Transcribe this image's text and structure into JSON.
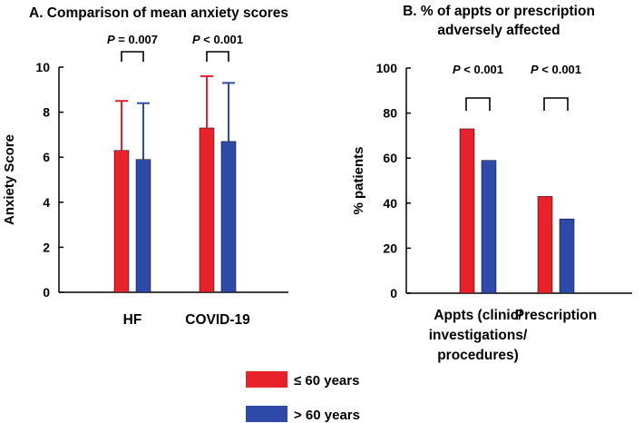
{
  "colors": {
    "series1": "#e8222b",
    "series2": "#2e4aa8",
    "axis": "#000000"
  },
  "legend": [
    {
      "label": "≤ 60 years",
      "color": "#e8222b"
    },
    {
      "label": "> 60 years",
      "color": "#2e4aa8"
    }
  ],
  "chart_data": [
    {
      "type": "bar",
      "title": "A. Comparison of mean anxiety scores",
      "xlabel": "",
      "ylabel": "Anxiety Score",
      "ylim": [
        0,
        10
      ],
      "yticks": [
        "0",
        "2",
        "4",
        "6",
        "8",
        "10"
      ],
      "categories": [
        "HF",
        "COVID-19"
      ],
      "series": [
        {
          "name": "≤ 60 years",
          "values": [
            6.3,
            7.3
          ],
          "error_upper": [
            8.5,
            9.6
          ]
        },
        {
          "name": "> 60 years",
          "values": [
            5.9,
            6.7
          ],
          "error_upper": [
            8.4,
            9.3
          ]
        }
      ],
      "annotations": [
        {
          "p": "P",
          "rest": " = 0.007"
        },
        {
          "p": "P",
          "rest": " < 0.001"
        }
      ]
    },
    {
      "type": "bar",
      "title": [
        "B. % of appts or prescription",
        "adversely affected"
      ],
      "xlabel": "",
      "ylabel": "% patients",
      "ylim": [
        0,
        100
      ],
      "yticks": [
        "0",
        "20",
        "40",
        "60",
        "80",
        "100"
      ],
      "categories": [
        [
          "Appts (clinic/",
          "investigations/",
          "procedures)"
        ],
        [
          "Prescription"
        ]
      ],
      "series": [
        {
          "name": "≤ 60 years",
          "values": [
            73,
            43
          ]
        },
        {
          "name": "> 60 years",
          "values": [
            59,
            33
          ]
        }
      ],
      "annotations": [
        {
          "p": "P",
          "rest": " < 0.001"
        },
        {
          "p": "P",
          "rest": " < 0.001"
        }
      ]
    }
  ]
}
